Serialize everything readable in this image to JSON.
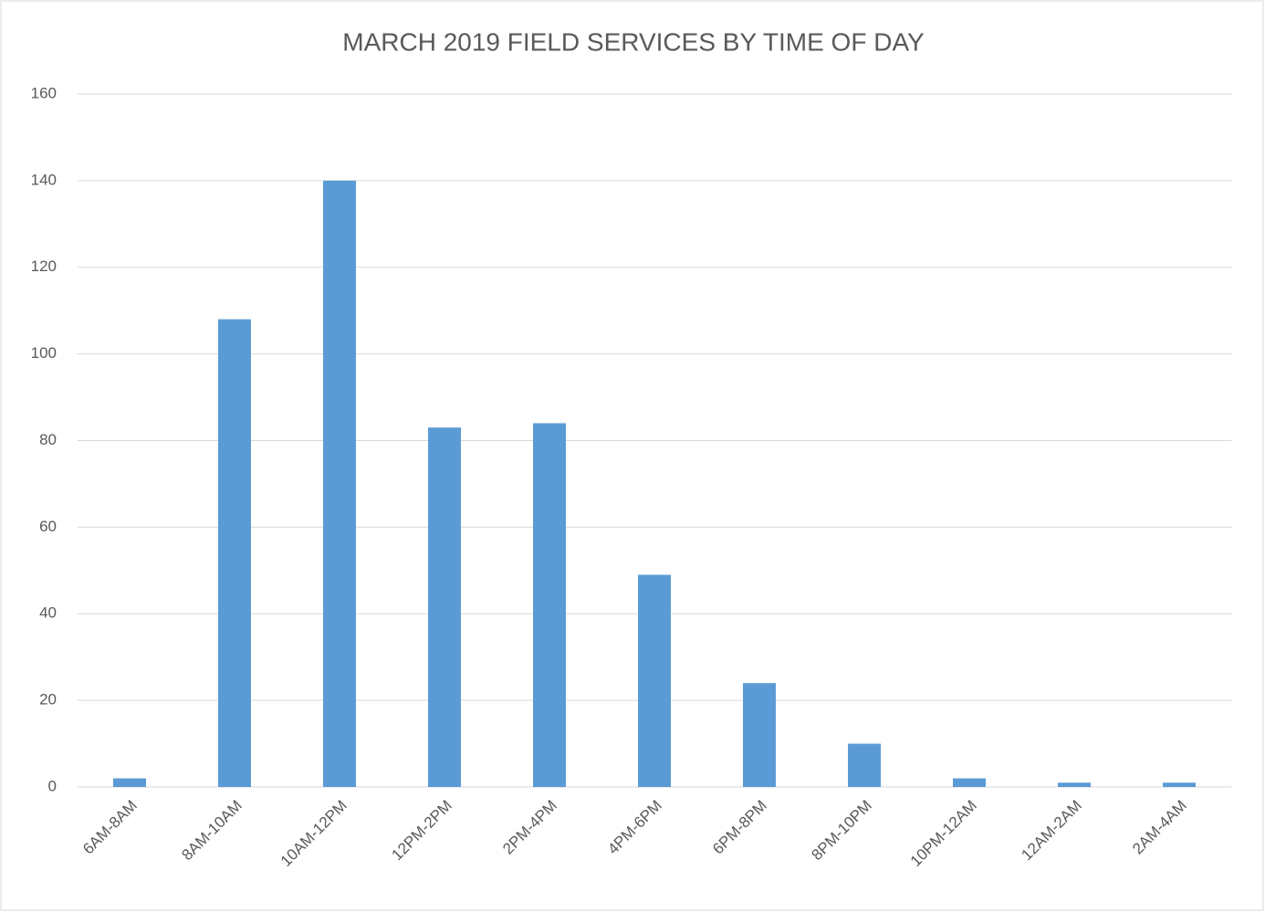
{
  "chart_data": {
    "type": "bar",
    "title": "MARCH 2019 FIELD SERVICES BY TIME OF DAY",
    "categories": [
      "6AM-8AM",
      "8AM-10AM",
      "10AM-12PM",
      "12PM-2PM",
      "2PM-4PM",
      "4PM-6PM",
      "6PM-8PM",
      "8PM-10PM",
      "10PM-12AM",
      "12AM-2AM",
      "2AM-4AM"
    ],
    "values": [
      2,
      108,
      140,
      83,
      84,
      49,
      24,
      10,
      2,
      1,
      1
    ],
    "color": "#5b9bd5",
    "ylim": [
      0,
      160
    ],
    "yticks": [
      0,
      20,
      40,
      60,
      80,
      100,
      120,
      140,
      160
    ],
    "grid": true
  }
}
